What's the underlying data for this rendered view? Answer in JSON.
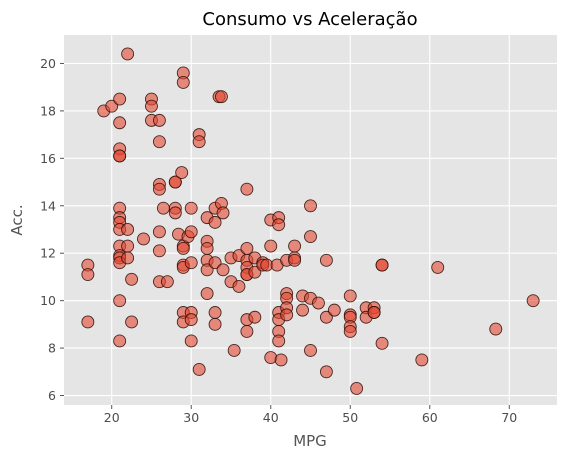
{
  "chart_data": {
    "type": "scatter",
    "title": "Consumo vs Aceleração",
    "xlabel": "MPG",
    "ylabel": "Acc.",
    "xlim": [
      14,
      76
    ],
    "ylim": [
      5.6,
      21.2
    ],
    "xticks": [
      20,
      30,
      40,
      50,
      60,
      70
    ],
    "yticks": [
      6,
      8,
      10,
      12,
      14,
      16,
      18,
      20
    ],
    "grid": true,
    "colors": {
      "plot_background": "#e5e5e5",
      "grid": "#ffffff",
      "marker_fill": "#e24a33",
      "marker_edge": "#2b0d06"
    },
    "marker_alpha": 0.6,
    "points": [
      {
        "x": 17,
        "y": 11.5
      },
      {
        "x": 17,
        "y": 11.1
      },
      {
        "x": 17,
        "y": 9.1
      },
      {
        "x": 19,
        "y": 18
      },
      {
        "x": 20,
        "y": 18.2
      },
      {
        "x": 21,
        "y": 18.5
      },
      {
        "x": 21,
        "y": 17.5
      },
      {
        "x": 21,
        "y": 16.4
      },
      {
        "x": 21,
        "y": 16.1
      },
      {
        "x": 21,
        "y": 16.1
      },
      {
        "x": 21,
        "y": 13.9
      },
      {
        "x": 21,
        "y": 13.5
      },
      {
        "x": 21,
        "y": 13.3
      },
      {
        "x": 21,
        "y": 13
      },
      {
        "x": 21,
        "y": 12.3
      },
      {
        "x": 21,
        "y": 11.9
      },
      {
        "x": 21,
        "y": 11.8
      },
      {
        "x": 21,
        "y": 11.6
      },
      {
        "x": 21,
        "y": 10
      },
      {
        "x": 21,
        "y": 8.3
      },
      {
        "x": 22,
        "y": 20.4
      },
      {
        "x": 22,
        "y": 13
      },
      {
        "x": 22,
        "y": 12.3
      },
      {
        "x": 22,
        "y": 11.8
      },
      {
        "x": 22.5,
        "y": 10.9
      },
      {
        "x": 22.5,
        "y": 9.1
      },
      {
        "x": 24,
        "y": 12.6
      },
      {
        "x": 25,
        "y": 18.5
      },
      {
        "x": 25,
        "y": 18.2
      },
      {
        "x": 25,
        "y": 17.6
      },
      {
        "x": 26,
        "y": 17.6
      },
      {
        "x": 26,
        "y": 16.7
      },
      {
        "x": 26,
        "y": 14.9
      },
      {
        "x": 26,
        "y": 14.7
      },
      {
        "x": 26,
        "y": 12.9
      },
      {
        "x": 26,
        "y": 12.1
      },
      {
        "x": 26,
        "y": 10.8
      },
      {
        "x": 26.5,
        "y": 13.9
      },
      {
        "x": 27,
        "y": 10.8
      },
      {
        "x": 28,
        "y": 15
      },
      {
        "x": 28,
        "y": 15
      },
      {
        "x": 28,
        "y": 13.9
      },
      {
        "x": 28,
        "y": 13.7
      },
      {
        "x": 28.4,
        "y": 12.8
      },
      {
        "x": 29,
        "y": 19.6
      },
      {
        "x": 29,
        "y": 19.2
      },
      {
        "x": 28.8,
        "y": 15.4
      },
      {
        "x": 29,
        "y": 12.3
      },
      {
        "x": 29,
        "y": 12.2
      },
      {
        "x": 29,
        "y": 11.5
      },
      {
        "x": 29,
        "y": 11.4
      },
      {
        "x": 29,
        "y": 9.5
      },
      {
        "x": 29,
        "y": 9.1
      },
      {
        "x": 29.6,
        "y": 12.7
      },
      {
        "x": 30,
        "y": 13.9
      },
      {
        "x": 30,
        "y": 12.9
      },
      {
        "x": 30,
        "y": 11.6
      },
      {
        "x": 30,
        "y": 9.5
      },
      {
        "x": 30,
        "y": 9.2
      },
      {
        "x": 30,
        "y": 8.3
      },
      {
        "x": 31,
        "y": 17
      },
      {
        "x": 31,
        "y": 16.7
      },
      {
        "x": 31,
        "y": 7.1
      },
      {
        "x": 32,
        "y": 13.5
      },
      {
        "x": 32,
        "y": 12.5
      },
      {
        "x": 32,
        "y": 12.2
      },
      {
        "x": 32,
        "y": 11.7
      },
      {
        "x": 32,
        "y": 11.3
      },
      {
        "x": 32,
        "y": 10.3
      },
      {
        "x": 33,
        "y": 13.9
      },
      {
        "x": 33,
        "y": 13.3
      },
      {
        "x": 33,
        "y": 11.6
      },
      {
        "x": 33,
        "y": 9.5
      },
      {
        "x": 33,
        "y": 9
      },
      {
        "x": 33.5,
        "y": 18.6
      },
      {
        "x": 33.8,
        "y": 18.6
      },
      {
        "x": 33.8,
        "y": 14.1
      },
      {
        "x": 34,
        "y": 13.7
      },
      {
        "x": 34,
        "y": 11.3
      },
      {
        "x": 35,
        "y": 11.8
      },
      {
        "x": 35,
        "y": 10.8
      },
      {
        "x": 35.4,
        "y": 7.9
      },
      {
        "x": 36,
        "y": 11.9
      },
      {
        "x": 36,
        "y": 10.6
      },
      {
        "x": 37,
        "y": 14.7
      },
      {
        "x": 37,
        "y": 12.2
      },
      {
        "x": 37,
        "y": 11.7
      },
      {
        "x": 37,
        "y": 11.4
      },
      {
        "x": 37,
        "y": 11.1
      },
      {
        "x": 37,
        "y": 11.1
      },
      {
        "x": 37,
        "y": 9.2
      },
      {
        "x": 37,
        "y": 8.7
      },
      {
        "x": 38,
        "y": 11.8
      },
      {
        "x": 38,
        "y": 11.2
      },
      {
        "x": 38,
        "y": 9.3
      },
      {
        "x": 39,
        "y": 11.6
      },
      {
        "x": 39,
        "y": 11.5
      },
      {
        "x": 39.5,
        "y": 11.5
      },
      {
        "x": 40,
        "y": 13.4
      },
      {
        "x": 40,
        "y": 12.3
      },
      {
        "x": 40,
        "y": 7.6
      },
      {
        "x": 40.8,
        "y": 11.5
      },
      {
        "x": 41,
        "y": 13.5
      },
      {
        "x": 41,
        "y": 13.2
      },
      {
        "x": 41,
        "y": 9.5
      },
      {
        "x": 41,
        "y": 9.2
      },
      {
        "x": 41,
        "y": 8.7
      },
      {
        "x": 41,
        "y": 8.3
      },
      {
        "x": 41.3,
        "y": 7.5
      },
      {
        "x": 42,
        "y": 11.7
      },
      {
        "x": 42,
        "y": 10.3
      },
      {
        "x": 42,
        "y": 10.1
      },
      {
        "x": 42,
        "y": 9.7
      },
      {
        "x": 42,
        "y": 9.4
      },
      {
        "x": 43,
        "y": 12.3
      },
      {
        "x": 43,
        "y": 11.8
      },
      {
        "x": 43,
        "y": 11.7
      },
      {
        "x": 44,
        "y": 10.2
      },
      {
        "x": 44,
        "y": 9.6
      },
      {
        "x": 45,
        "y": 14
      },
      {
        "x": 45,
        "y": 12.7
      },
      {
        "x": 45,
        "y": 10.1
      },
      {
        "x": 45,
        "y": 7.9
      },
      {
        "x": 46,
        "y": 9.9
      },
      {
        "x": 47,
        "y": 11.7
      },
      {
        "x": 47,
        "y": 9.3
      },
      {
        "x": 47,
        "y": 7
      },
      {
        "x": 48,
        "y": 9.6
      },
      {
        "x": 50,
        "y": 10.2
      },
      {
        "x": 50,
        "y": 9.4
      },
      {
        "x": 50,
        "y": 9.3
      },
      {
        "x": 50,
        "y": 8.9
      },
      {
        "x": 50,
        "y": 8.7
      },
      {
        "x": 50.8,
        "y": 6.3
      },
      {
        "x": 52,
        "y": 9.7
      },
      {
        "x": 52,
        "y": 9.3
      },
      {
        "x": 53,
        "y": 9.7
      },
      {
        "x": 53,
        "y": 9.5
      },
      {
        "x": 53,
        "y": 9.5
      },
      {
        "x": 54,
        "y": 11.5
      },
      {
        "x": 54,
        "y": 11.5
      },
      {
        "x": 54,
        "y": 8.2
      },
      {
        "x": 59,
        "y": 7.5
      },
      {
        "x": 61,
        "y": 11.4
      },
      {
        "x": 68.3,
        "y": 8.8
      },
      {
        "x": 73,
        "y": 10
      }
    ]
  }
}
